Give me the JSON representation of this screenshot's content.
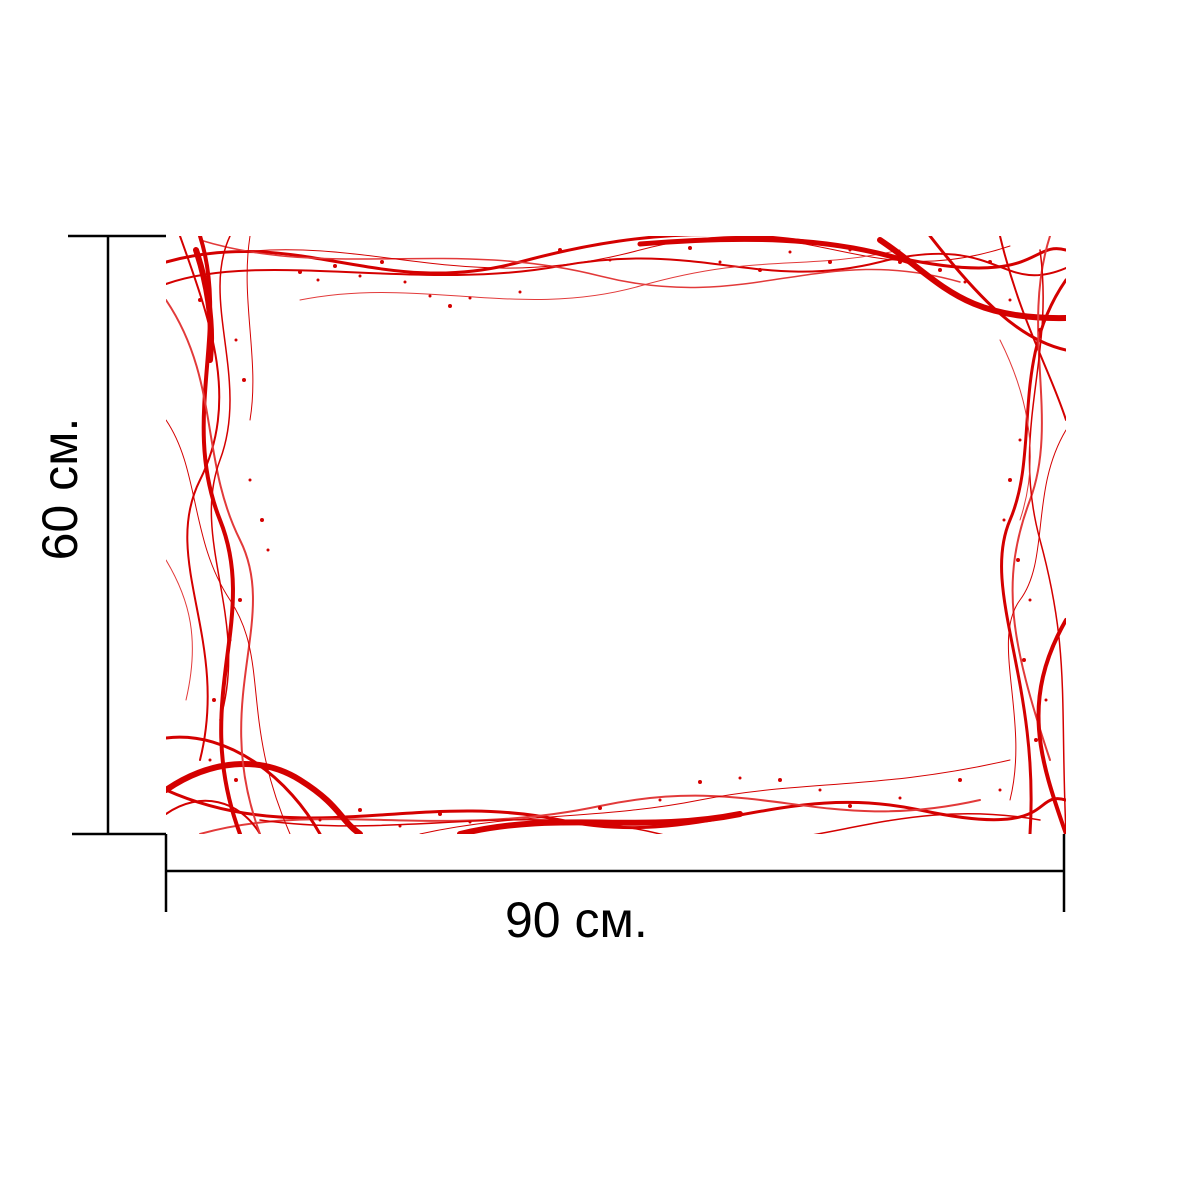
{
  "product": {
    "width_label": "90 см.",
    "height_label": "60 см."
  },
  "colors": {
    "background": "#ffffff",
    "panel": "#ffffff",
    "swirl": "#d40000",
    "swirl_light": "#e23a3a",
    "dimension_line": "#000000"
  }
}
